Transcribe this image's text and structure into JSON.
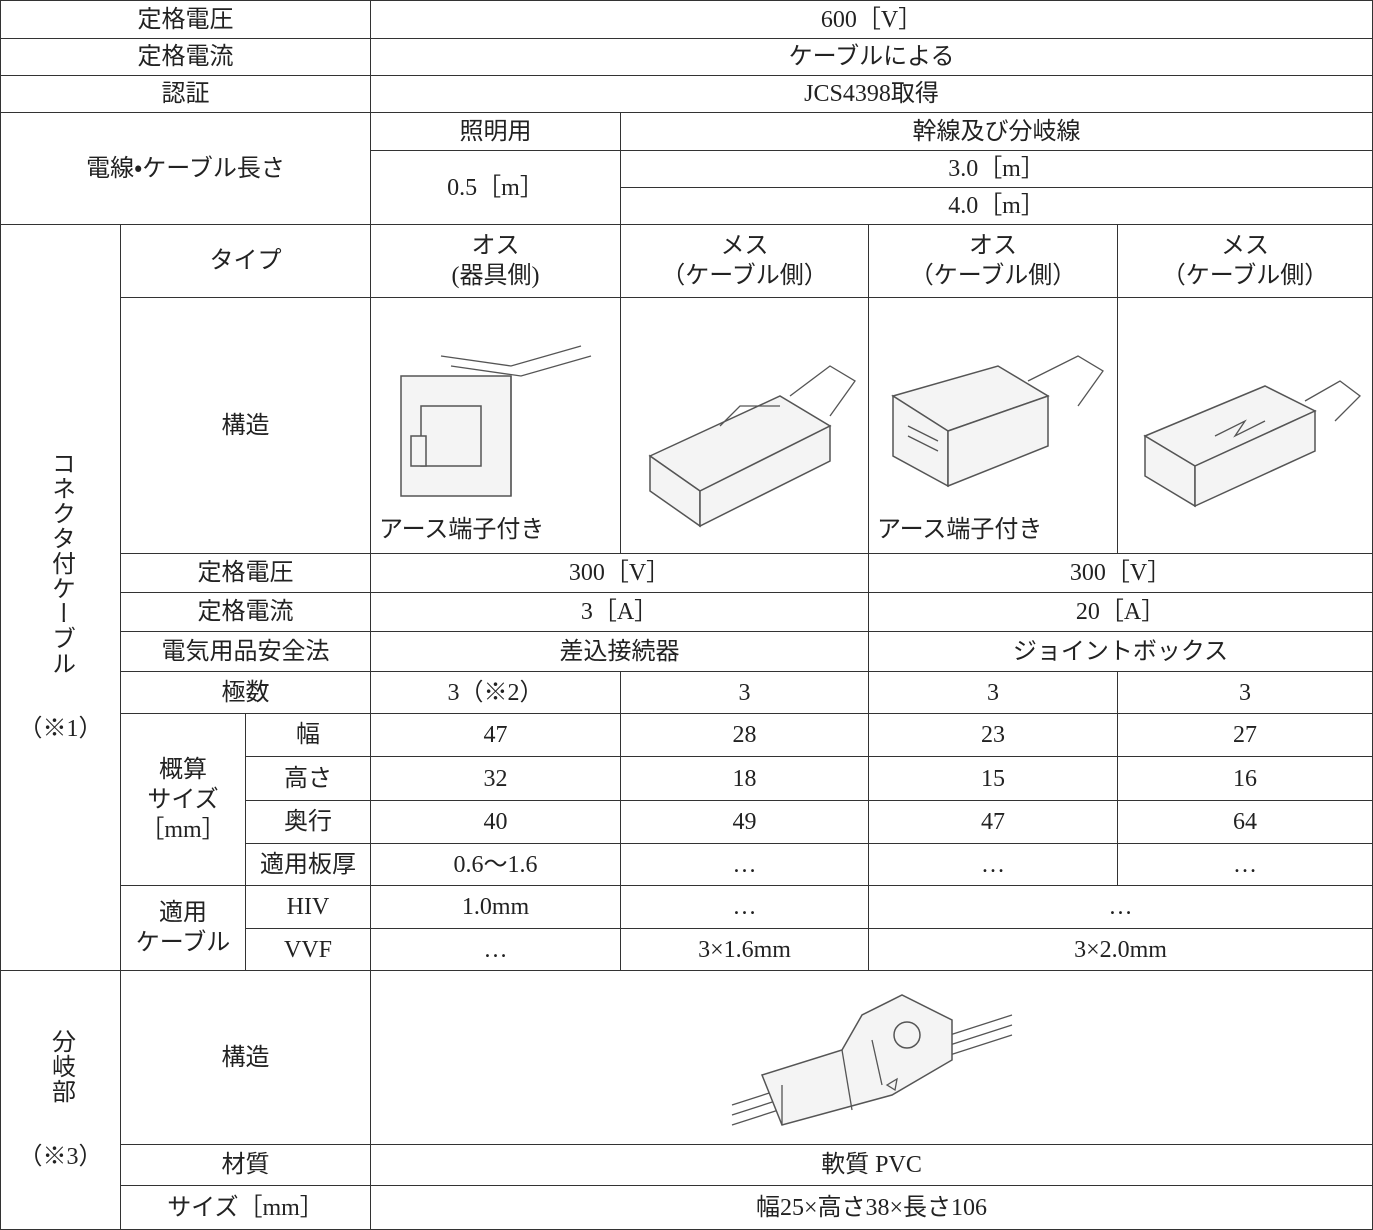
{
  "table": {
    "rows": [
      [
        "定格電圧",
        "600［V］"
      ],
      [
        "定格電流",
        "ケーブルによる"
      ],
      [
        "認証",
        "JCS4398取得"
      ],
      [
        "電線・ケーブル長さ",
        "照明用",
        "幹線及び分岐線"
      ],
      [
        "0.5［m］",
        "3.0［m］"
      ],
      [
        "4.0［m］"
      ],
      [
        "コネクタ付ケーブル",
        "（※1）",
        "タイプ",
        "オス\n(器具側)",
        "メス\n（ケーブル側）",
        "オス\n（ケーブル側）",
        "メス\n（ケーブル側）"
      ],
      [
        "構造",
        "アース端子付き",
        "アース端子付き"
      ],
      [
        "定格電圧",
        "300［V］",
        "300［V］"
      ],
      [
        "定格電流",
        "3［A］",
        "20［A］"
      ],
      [
        "電気用品安全法",
        "差込接続器",
        "ジョイントボックス"
      ],
      [
        "極数",
        "3（※2）",
        "3",
        "3",
        "3"
      ],
      [
        "概算\nサイズ\n［mm］",
        "幅",
        "47",
        "28",
        "23",
        "27"
      ],
      [
        "高さ",
        "32",
        "18",
        "15",
        "16"
      ],
      [
        "奥行",
        "40",
        "49",
        "47",
        "64"
      ],
      [
        "適用板厚",
        "0.6～1.6",
        "…",
        "…",
        "…"
      ],
      [
        "適用\nケーブル",
        "HIV",
        "1.0mm",
        "…",
        "…"
      ],
      [
        "VVF",
        "…",
        "3×1.6mm",
        "3×2.0mm"
      ],
      [
        "分岐部",
        "（※3）",
        "構造"
      ],
      [
        "材質",
        "軟質 PVC"
      ],
      [
        "サイズ［mm］",
        "幅25×高さ38×長さ106"
      ]
    ]
  }
}
